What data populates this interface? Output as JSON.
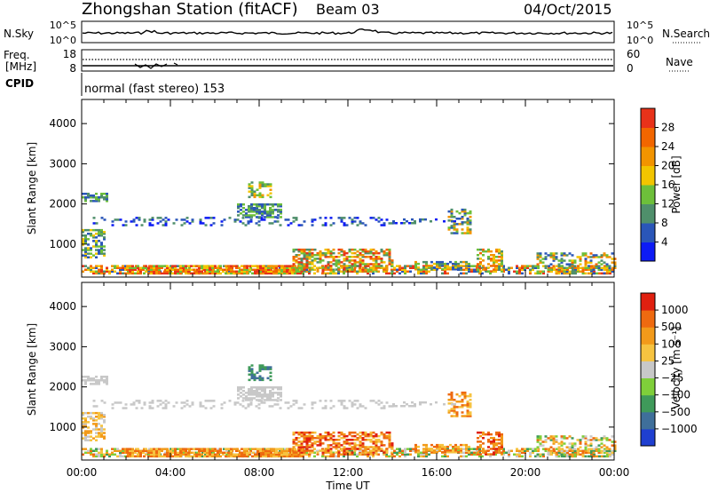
{
  "header": {
    "station": "Zhongshan Station (fitACF)",
    "beam": "Beam 03",
    "date": "04/Oct/2015"
  },
  "noise_panel": {
    "left_label": "N.Sky",
    "left_ticks": [
      "10^5",
      "10^0"
    ],
    "right_ticks": [
      "10^5",
      "10^0"
    ],
    "right_label": "N.Search"
  },
  "freq_panel": {
    "left_label_1": "Freq.",
    "left_label_2": "[MHz]",
    "left_ticks": [
      "18",
      "8"
    ],
    "right_ticks": [
      "60",
      "0"
    ],
    "right_label": "Nave"
  },
  "cpid_panel": {
    "label": "CPID",
    "text": "normal (fast stereo) 153"
  },
  "chart_data": [
    {
      "type": "heatmap",
      "quantity": "Power",
      "ylabel": "Slant Range [km]",
      "yticks": [
        "1000",
        "2000",
        "3000",
        "4000"
      ],
      "ylim": [
        180,
        4600
      ],
      "xlim": [
        0,
        24
      ],
      "xticks": [
        "00:00",
        "04:00",
        "08:00",
        "12:00",
        "16:00",
        "20:00",
        "00:00"
      ],
      "colorbar": {
        "label": "Power [dB]",
        "ticks": [
          "4",
          "8",
          "12",
          "16",
          "20",
          "24",
          "28"
        ],
        "colors": [
          "#0d1bf5",
          "#2a56b8",
          "#4f8f6b",
          "#6dbf3a",
          "#f2c500",
          "#f29400",
          "#f26600",
          "#e8321a"
        ]
      }
    },
    {
      "type": "heatmap",
      "quantity": "Velocity",
      "ylabel": "Slant Range [km]",
      "yticks": [
        "1000",
        "2000",
        "3000",
        "4000"
      ],
      "ylim": [
        180,
        4600
      ],
      "xlim": [
        0,
        24
      ],
      "xticks": [
        "00:00",
        "04:00",
        "08:00",
        "12:00",
        "16:00",
        "20:00",
        "00:00"
      ],
      "xlabel": "Time UT",
      "colorbar": {
        "label": "Velocity [m s⁻¹]",
        "ticks": [
          "1000",
          "500",
          "100",
          "25",
          "−25",
          "−100",
          "−500",
          "−1000"
        ],
        "colors": [
          "#1f3fd0",
          "#3f6f9a",
          "#3f9a5a",
          "#7fcf3a",
          "#c8c8c8",
          "#f6c340",
          "#f29a1a",
          "#ee6a10",
          "#e02010"
        ]
      }
    }
  ]
}
